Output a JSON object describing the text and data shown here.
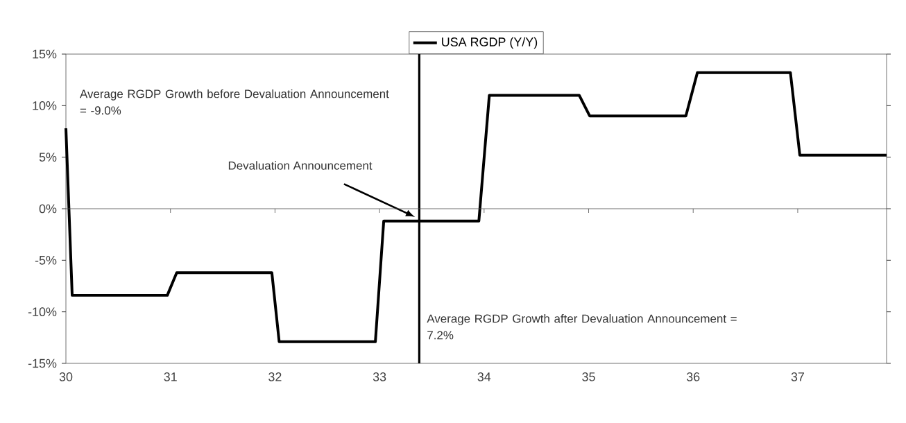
{
  "chart_data": {
    "type": "line",
    "x": [
      30,
      30.06,
      30.97,
      31.06,
      31.97,
      32.04,
      32.96,
      33.04,
      33.95,
      34.05,
      34.91,
      35.01,
      35.93,
      36.04,
      36.93,
      37.02,
      37.85
    ],
    "series": [
      {
        "name": "USA RGDP (Y/Y)",
        "color": "#000000",
        "values": [
          7.8,
          -8.4,
          -8.4,
          -6.2,
          -6.2,
          -12.9,
          -12.9,
          -1.2,
          -1.2,
          11.0,
          11.0,
          9.0,
          9.0,
          13.2,
          13.2,
          5.2,
          5.2
        ]
      }
    ],
    "xlim": [
      30,
      37.85
    ],
    "ylim": [
      -15,
      15
    ],
    "xticks": [
      30,
      31,
      32,
      33,
      34,
      35,
      36,
      37
    ],
    "yticks": [
      {
        "value": -15,
        "label": "-15%"
      },
      {
        "value": -10,
        "label": "-10%"
      },
      {
        "value": -5,
        "label": "-5%"
      },
      {
        "value": 0,
        "label": "0%"
      },
      {
        "value": 5,
        "label": "5%"
      },
      {
        "value": 10,
        "label": "10%"
      },
      {
        "value": 15,
        "label": "15%"
      }
    ],
    "ref_lines": [
      {
        "axis": "x",
        "value": 33.38,
        "label": "Devaluation Announcement"
      },
      {
        "axis": "y",
        "value": 0
      }
    ],
    "annotations": [
      "Average RGDP Growth before Devaluation Announcement = -9.0%",
      "Average RGDP Growth after Devaluation Announcement = 7.2%"
    ],
    "legend": "top",
    "marker": "none",
    "line_style": "solid",
    "grid": false
  }
}
